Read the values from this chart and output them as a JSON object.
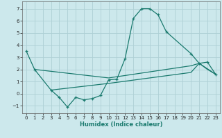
{
  "xlabel": "Humidex (Indice chaleur)",
  "bg_color": "#cce8ec",
  "line_color": "#1a7a6e",
  "grid_color": "#aed0d5",
  "xlim": [
    -0.5,
    23.5
  ],
  "ylim": [
    -1.6,
    7.6
  ],
  "xticks": [
    0,
    1,
    2,
    3,
    4,
    5,
    6,
    7,
    8,
    9,
    10,
    11,
    12,
    13,
    14,
    15,
    16,
    17,
    18,
    19,
    20,
    21,
    22,
    23
  ],
  "yticks": [
    -1,
    0,
    1,
    2,
    3,
    4,
    5,
    6,
    7
  ],
  "main_curve_x": [
    0,
    1,
    3,
    4,
    5,
    6,
    7,
    8,
    9,
    10,
    11,
    12,
    13,
    14,
    15,
    16,
    17,
    20,
    21,
    22,
    23
  ],
  "main_curve_y": [
    3.5,
    2.0,
    0.3,
    -0.3,
    -1.1,
    -0.3,
    -0.5,
    -0.4,
    -0.15,
    1.15,
    1.2,
    2.9,
    6.2,
    7.0,
    7.0,
    6.5,
    5.1,
    3.3,
    2.5,
    2.6,
    1.6
  ],
  "trend1_x": [
    1,
    10,
    20,
    21,
    23
  ],
  "trend1_y": [
    2.0,
    1.3,
    2.3,
    2.5,
    1.6
  ],
  "trend2_x": [
    3,
    10,
    20,
    21,
    22,
    23
  ],
  "trend2_y": [
    0.3,
    0.85,
    1.75,
    2.5,
    2.0,
    1.6
  ]
}
